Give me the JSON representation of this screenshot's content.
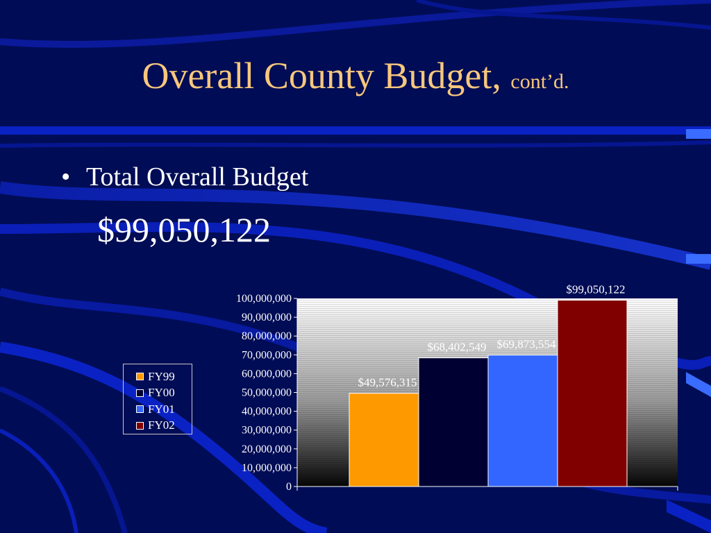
{
  "slide": {
    "title_main": "Overall County Budget,",
    "title_sub": "cont’d.",
    "bullet_marker": "•",
    "bullet_text": "Total Overall Budget",
    "amount": "$99,050,122"
  },
  "colors": {
    "background": "#000c55",
    "title": "#f7c77c",
    "text": "#ffffff"
  },
  "chart_data": {
    "type": "bar",
    "title": "",
    "xlabel": "",
    "ylabel": "",
    "ylim": [
      0,
      100000000
    ],
    "yticks": [
      "100,000,000",
      "90,000,000",
      "80,000,000",
      "70,000,000",
      "60,000,000",
      "50,000,000",
      "40,000,000",
      "30,000,000",
      "20,000,000",
      "10,000,000",
      "0"
    ],
    "grid": false,
    "legend_position": "left",
    "series": [
      {
        "name": "FY99",
        "value": 49576315,
        "label": "$49,576,315",
        "color": "#ff9900"
      },
      {
        "name": "FY00",
        "value": 68402549,
        "label": "$68,402,549",
        "color": "#000033"
      },
      {
        "name": "FY01",
        "value": 69873554,
        "label": "$69,873,554",
        "color": "#3366ff"
      },
      {
        "name": "FY02",
        "value": 99050122,
        "label": "$99,050,122",
        "color": "#800000"
      }
    ]
  }
}
